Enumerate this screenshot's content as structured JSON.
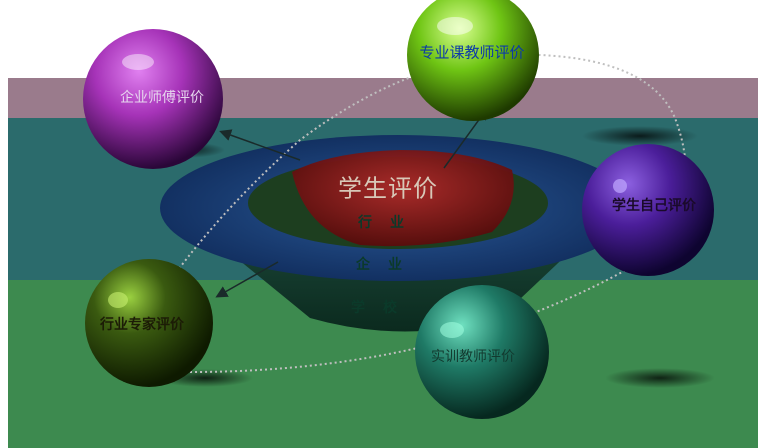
{
  "diagram": {
    "center": {
      "title": "学生评价",
      "rings": [
        "行业",
        "企业",
        "学校"
      ]
    },
    "evaluators": {
      "enterprise_mentor": "企业师傅评价",
      "course_teacher": "专业课教师评价",
      "self": "学生自己评价",
      "industry_expert": "行业专家评价",
      "training_teacher": "实训教师评价"
    },
    "colors": {
      "band_top": "#9a7b8c",
      "band_middle": "#2b6b6c",
      "band_bottom": "#3d8a4f",
      "bowl_outer": "#153e78",
      "bowl_inner": "#8b1a1a",
      "ball_enterprise": "#a633b8",
      "ball_teacher": "#6fc514",
      "ball_self": "#4b1e9a",
      "ball_expert": "#3a5a10",
      "ball_training": "#1f7a66"
    }
  }
}
